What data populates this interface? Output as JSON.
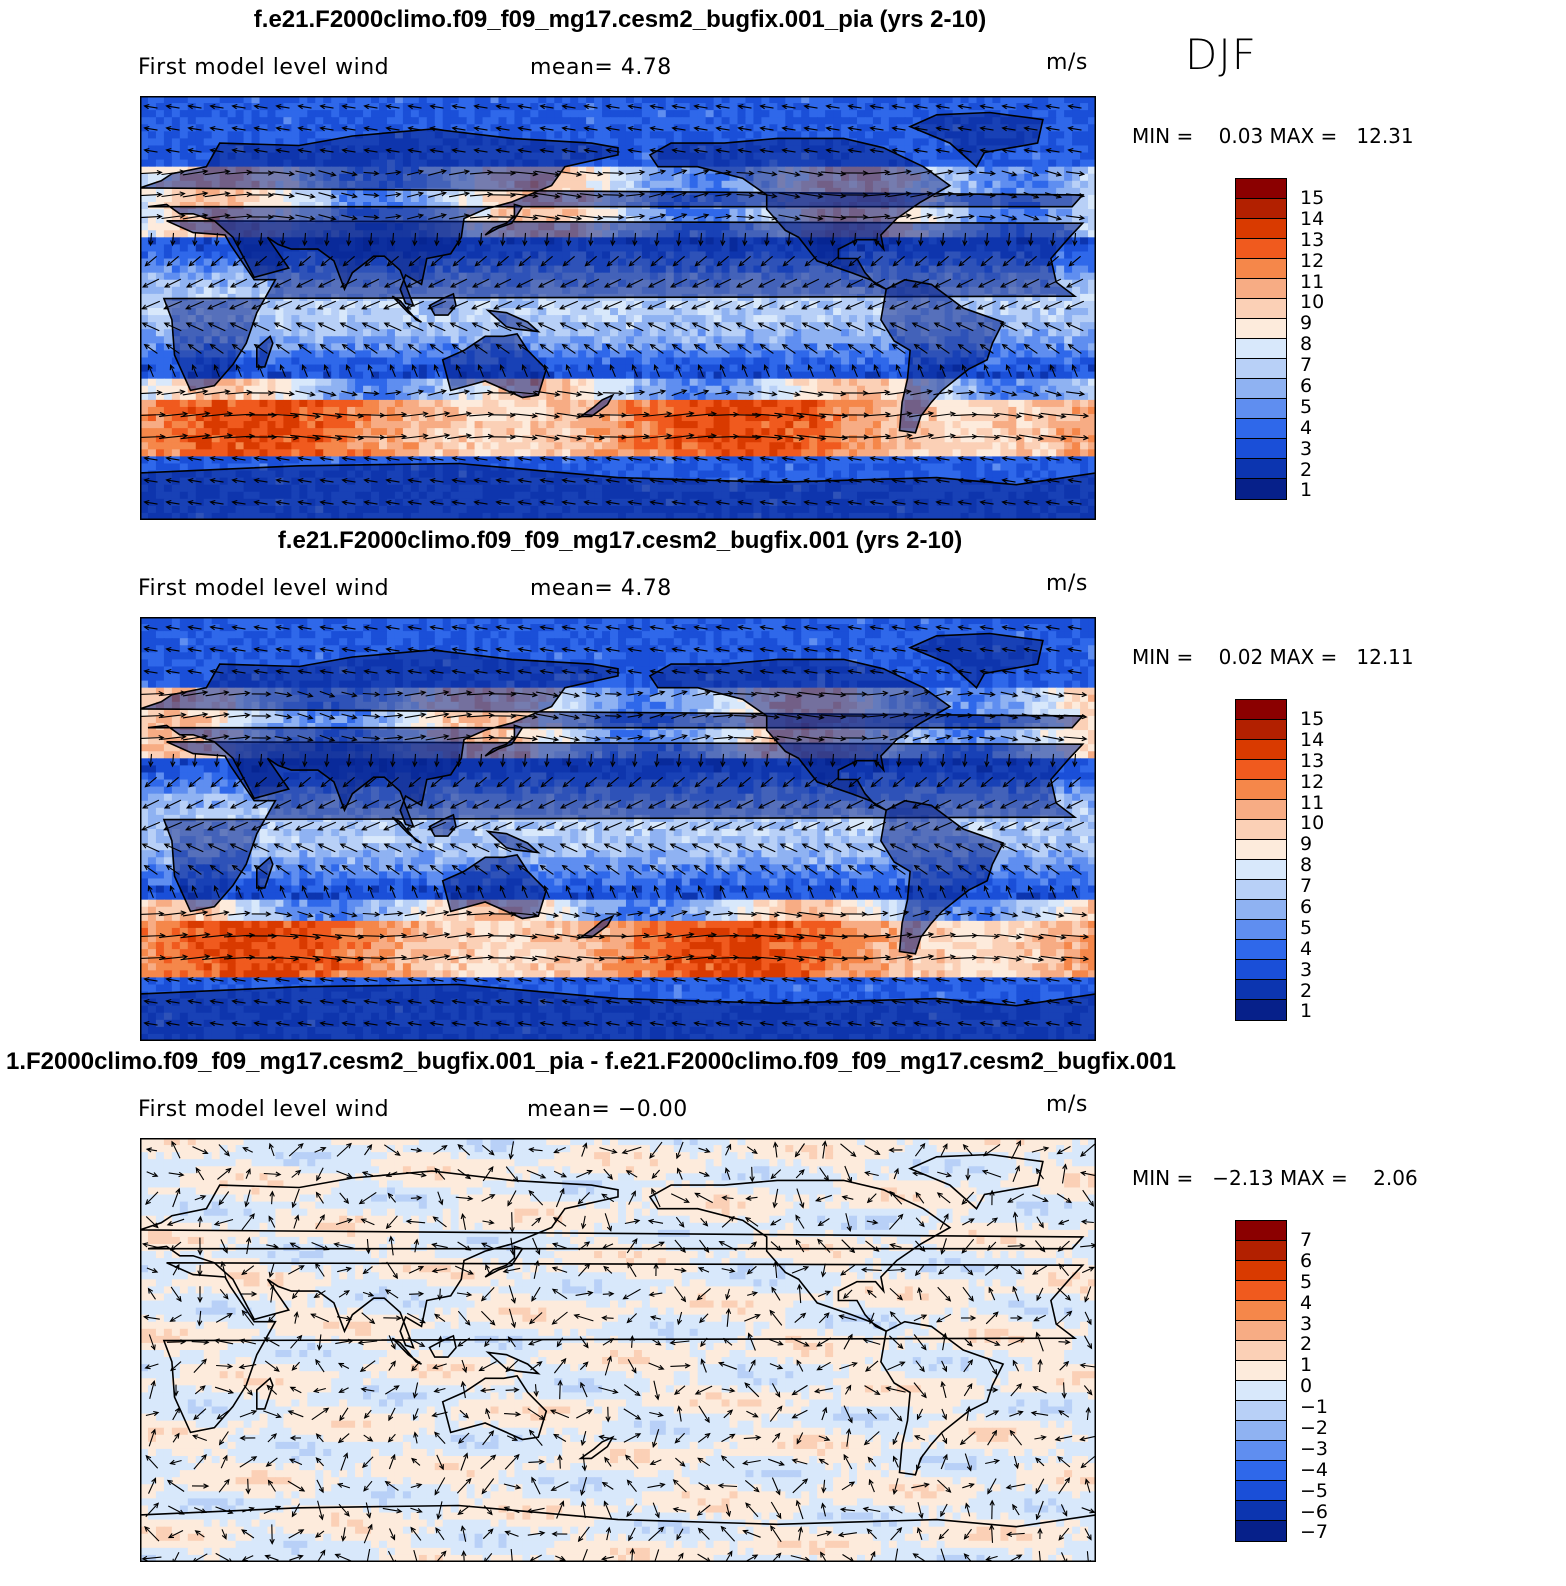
{
  "season": "DJF",
  "panels": [
    {
      "title": "f.e21.F2000climo.f09_f09_mg17.cesm2_bugfix.001_pia (yrs 2-10)",
      "label": "First model level wind",
      "mean": "mean=   4.78",
      "units": "m/s",
      "minmax": "MIN =    0.03 MAX =   12.31",
      "kind": "abs",
      "levels": [
        "15",
        "14",
        "13",
        "12",
        "11",
        "10",
        "9",
        "8",
        "7",
        "6",
        "5",
        "4",
        "3",
        "2",
        "1"
      ]
    },
    {
      "title": "f.e21.F2000climo.f09_f09_mg17.cesm2_bugfix.001 (yrs 2-10)",
      "label": "First model level wind",
      "mean": "mean=   4.78",
      "units": "m/s",
      "minmax": "MIN =    0.02 MAX =   12.11",
      "kind": "abs",
      "levels": [
        "15",
        "14",
        "13",
        "12",
        "11",
        "10",
        "9",
        "8",
        "7",
        "6",
        "5",
        "4",
        "3",
        "2",
        "1"
      ]
    },
    {
      "title": "1.F2000climo.f09_f09_mg17.cesm2_bugfix.001_pia - f.e21.F2000climo.f09_f09_mg17.cesm2_bugfix.001",
      "label": "First model level wind",
      "mean": "mean=  −0.00",
      "units": "m/s",
      "minmax": "MIN =   −2.13 MAX =    2.06",
      "kind": "diff",
      "levels": [
        "7",
        "6",
        "5",
        "4",
        "3",
        "2",
        "1",
        "0",
        "−1",
        "−2",
        "−3",
        "−4",
        "−5",
        "−6",
        "−7"
      ]
    }
  ],
  "colors": {
    "warm": [
      "#8b0000",
      "#b22000",
      "#d93a00",
      "#f05a1e",
      "#f5874a",
      "#f7ac84",
      "#fbd0b6",
      "#fdebdc"
    ],
    "cool": [
      "#d8e8fb",
      "#b8d0f7",
      "#8fb2f2",
      "#5f8ef0",
      "#2f68ea",
      "#1a4fd8",
      "#0c35b0",
      "#06208a"
    ]
  }
}
